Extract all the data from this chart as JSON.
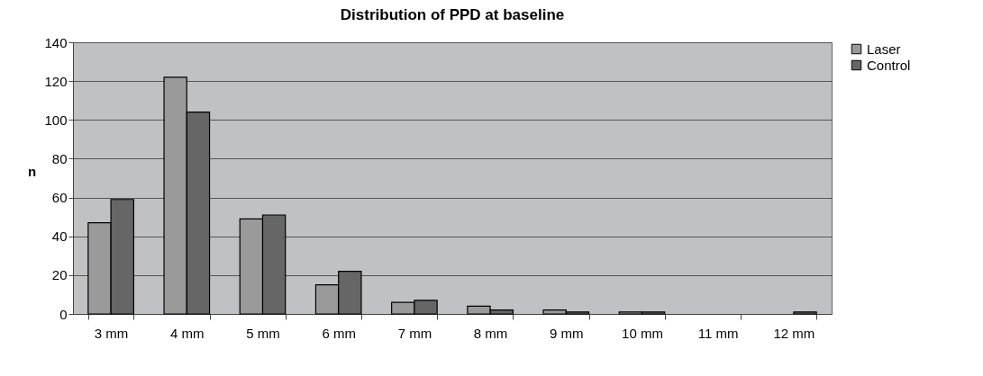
{
  "chart_data": {
    "type": "bar",
    "title": "Distribution of PPD at baseline",
    "ylabel": "n",
    "categories": [
      "3 mm",
      "4 mm",
      "5 mm",
      "6 mm",
      "7 mm",
      "8 mm",
      "9 mm",
      "10 mm",
      "11 mm",
      "12 mm"
    ],
    "series": [
      {
        "name": "Laser",
        "color": "#9a9a9a",
        "values": [
          47,
          122,
          49,
          15,
          6,
          4,
          2,
          1,
          0,
          0
        ]
      },
      {
        "name": "Control",
        "color": "#666666",
        "values": [
          59,
          104,
          51,
          22,
          7,
          2,
          1,
          1,
          0,
          1
        ]
      }
    ],
    "ylim": [
      0,
      140
    ],
    "yticks": [
      0,
      20,
      40,
      60,
      80,
      100,
      120,
      140
    ],
    "grid": "y",
    "legend": "right"
  }
}
